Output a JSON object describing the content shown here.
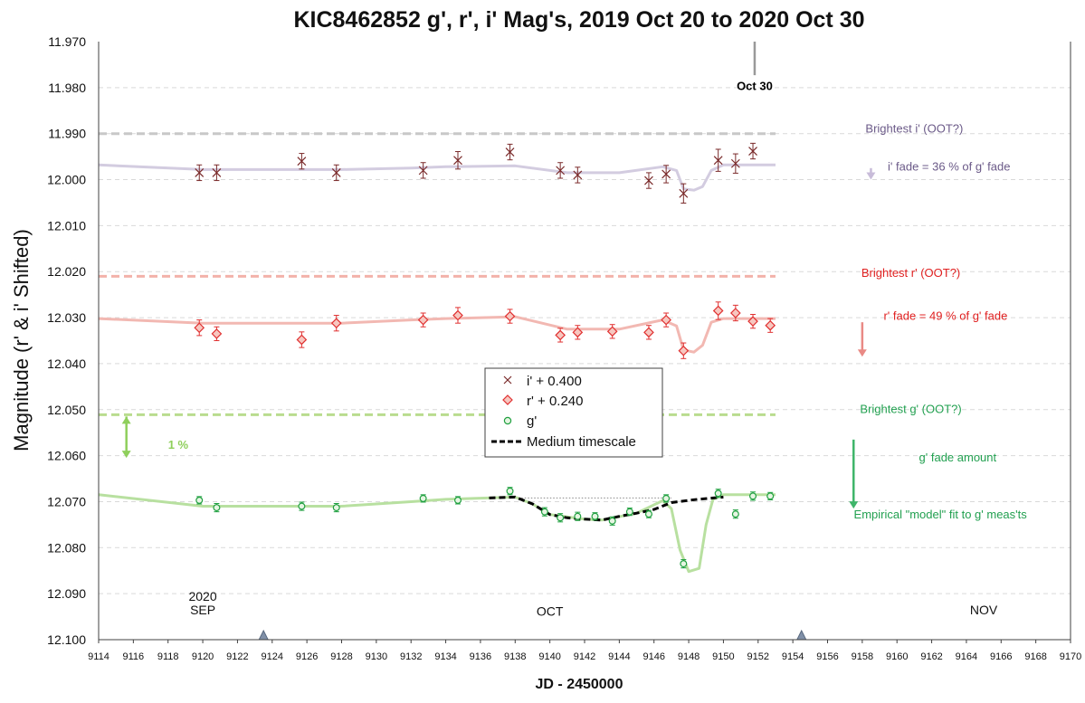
{
  "chart_data": {
    "type": "scatter",
    "title": "KIC8462852 g', r', i' Mag's, 2019 Oct 20 to 2020 Oct 30",
    "xlabel": "JD - 2450000",
    "ylabel": "Magnitude  (r' & i' Shifted)",
    "xlim": [
      9114,
      9170
    ],
    "ylim": [
      11.97,
      12.1
    ],
    "y_inverted": false,
    "x_ticks": [
      9114,
      9116,
      9118,
      9120,
      9122,
      9124,
      9126,
      9128,
      9130,
      9132,
      9134,
      9136,
      9138,
      9140,
      9142,
      9144,
      9146,
      9148,
      9150,
      9152,
      9154,
      9156,
      9158,
      9160,
      9162,
      9164,
      9166,
      9168,
      9170
    ],
    "y_ticks": [
      "11.970",
      "11.980",
      "11.990",
      "12.000",
      "12.010",
      "12.020",
      "12.030",
      "12.040",
      "12.050",
      "12.060",
      "12.070",
      "12.080",
      "12.090",
      "12.100"
    ],
    "grid": true,
    "legend_position": "center",
    "colors": {
      "i": "#7a2a2a",
      "i_line": "#d3cce0",
      "i_ref": "#c8c8c8",
      "r": "#e03030",
      "r_line": "#f2b8b2",
      "r_ref": "#f3b2aa",
      "g": "#20a040",
      "g_line": "#b8e0a0",
      "g_ref": "#b9dc8f",
      "medium": "#000000"
    },
    "series": [
      {
        "name": "i' + 0.400",
        "marker": "x",
        "points": [
          {
            "x": 9119.8,
            "y": 11.9985,
            "e": 0.0017
          },
          {
            "x": 9120.8,
            "y": 11.9985,
            "e": 0.0017
          },
          {
            "x": 9125.7,
            "y": 11.996,
            "e": 0.0017
          },
          {
            "x": 9127.7,
            "y": 11.9985,
            "e": 0.0017
          },
          {
            "x": 9132.7,
            "y": 11.998,
            "e": 0.0017
          },
          {
            "x": 9134.7,
            "y": 11.9958,
            "e": 0.0019
          },
          {
            "x": 9137.7,
            "y": 11.994,
            "e": 0.0017
          },
          {
            "x": 9140.6,
            "y": 11.998,
            "e": 0.0017
          },
          {
            "x": 9141.6,
            "y": 11.999,
            "e": 0.0017
          },
          {
            "x": 9145.7,
            "y": 12.0002,
            "e": 0.0017
          },
          {
            "x": 9146.7,
            "y": 11.9988,
            "e": 0.0019
          },
          {
            "x": 9147.7,
            "y": 12.003,
            "e": 0.0021
          },
          {
            "x": 9149.7,
            "y": 11.9958,
            "e": 0.0024
          },
          {
            "x": 9150.7,
            "y": 11.9965,
            "e": 0.0021
          },
          {
            "x": 9151.7,
            "y": 11.9938,
            "e": 0.0017
          }
        ]
      },
      {
        "name": "r' + 0.240",
        "marker": "diamond",
        "points": [
          {
            "x": 9119.8,
            "y": 12.0322,
            "e": 0.0017
          },
          {
            "x": 9120.8,
            "y": 12.0335,
            "e": 0.0015
          },
          {
            "x": 9125.7,
            "y": 12.0348,
            "e": 0.0017
          },
          {
            "x": 9127.7,
            "y": 12.0312,
            "e": 0.0017
          },
          {
            "x": 9132.7,
            "y": 12.0305,
            "e": 0.0015
          },
          {
            "x": 9134.7,
            "y": 12.0295,
            "e": 0.0017
          },
          {
            "x": 9137.7,
            "y": 12.0297,
            "e": 0.0015
          },
          {
            "x": 9140.6,
            "y": 12.0338,
            "e": 0.0015
          },
          {
            "x": 9141.6,
            "y": 12.0332,
            "e": 0.0015
          },
          {
            "x": 9143.6,
            "y": 12.033,
            "e": 0.0015
          },
          {
            "x": 9145.7,
            "y": 12.0332,
            "e": 0.0015
          },
          {
            "x": 9146.7,
            "y": 12.0305,
            "e": 0.0015
          },
          {
            "x": 9147.7,
            "y": 12.0372,
            "e": 0.0017
          },
          {
            "x": 9149.7,
            "y": 12.0285,
            "e": 0.0019
          },
          {
            "x": 9150.7,
            "y": 12.029,
            "e": 0.0017
          },
          {
            "x": 9151.7,
            "y": 12.0308,
            "e": 0.0015
          },
          {
            "x": 9152.7,
            "y": 12.0317,
            "e": 0.0015
          }
        ]
      },
      {
        "name": "g'",
        "marker": "circle",
        "points": [
          {
            "x": 9119.8,
            "y": 12.0697,
            "e": 0.0008
          },
          {
            "x": 9120.8,
            "y": 12.0713,
            "e": 0.0009
          },
          {
            "x": 9125.7,
            "y": 12.071,
            "e": 0.0009
          },
          {
            "x": 9127.7,
            "y": 12.0713,
            "e": 0.0009
          },
          {
            "x": 9132.7,
            "y": 12.0693,
            "e": 0.0008
          },
          {
            "x": 9134.7,
            "y": 12.0697,
            "e": 0.0008
          },
          {
            "x": 9137.7,
            "y": 12.0677,
            "e": 0.0008
          },
          {
            "x": 9139.7,
            "y": 12.0722,
            "e": 0.0009
          },
          {
            "x": 9140.6,
            "y": 12.0735,
            "e": 0.0009
          },
          {
            "x": 9141.6,
            "y": 12.0732,
            "e": 0.0009
          },
          {
            "x": 9142.6,
            "y": 12.0732,
            "e": 0.0008
          },
          {
            "x": 9143.6,
            "y": 12.0742,
            "e": 0.0009
          },
          {
            "x": 9144.6,
            "y": 12.0722,
            "e": 0.0008
          },
          {
            "x": 9145.7,
            "y": 12.0727,
            "e": 0.0008
          },
          {
            "x": 9146.7,
            "y": 12.0693,
            "e": 0.0008
          },
          {
            "x": 9147.7,
            "y": 12.0835,
            "e": 0.0009
          },
          {
            "x": 9149.7,
            "y": 12.0682,
            "e": 0.0009
          },
          {
            "x": 9150.7,
            "y": 12.0727,
            "e": 0.0009
          },
          {
            "x": 9151.7,
            "y": 12.0688,
            "e": 0.0009
          },
          {
            "x": 9152.7,
            "y": 12.0688,
            "e": 0.0008
          }
        ]
      },
      {
        "name": "Medium timescale",
        "marker": "dashed-line",
        "points": [
          {
            "x": 9136.5,
            "y": 12.0692
          },
          {
            "x": 9138,
            "y": 12.069
          },
          {
            "x": 9139,
            "y": 12.0705
          },
          {
            "x": 9140,
            "y": 12.0728
          },
          {
            "x": 9141,
            "y": 12.0735
          },
          {
            "x": 9142,
            "y": 12.0738
          },
          {
            "x": 9143,
            "y": 12.074
          },
          {
            "x": 9144,
            "y": 12.0732
          },
          {
            "x": 9145,
            "y": 12.0725
          },
          {
            "x": 9146,
            "y": 12.0717
          },
          {
            "x": 9147,
            "y": 12.0702
          },
          {
            "x": 9148.5,
            "y": 12.0695
          },
          {
            "x": 9150,
            "y": 12.069
          }
        ]
      }
    ],
    "model_lines": {
      "i": [
        [
          9114,
          11.9968
        ],
        [
          9120,
          11.9978
        ],
        [
          9128,
          11.9978
        ],
        [
          9132,
          11.9975
        ],
        [
          9134,
          11.9972
        ],
        [
          9138,
          11.997
        ],
        [
          9141,
          11.9985
        ],
        [
          9144,
          11.9985
        ],
        [
          9146.5,
          11.9972
        ],
        [
          9147.3,
          11.998
        ],
        [
          9147.7,
          12.002
        ],
        [
          9148.3,
          12.0023
        ],
        [
          9148.8,
          12.0015
        ],
        [
          9149.3,
          11.998
        ],
        [
          9150,
          11.9968
        ],
        [
          9153,
          11.9968
        ]
      ],
      "r": [
        [
          9114,
          12.0302
        ],
        [
          9120,
          12.0312
        ],
        [
          9128,
          12.0312
        ],
        [
          9132,
          12.0305
        ],
        [
          9134,
          12.0302
        ],
        [
          9138,
          12.0298
        ],
        [
          9141,
          12.0325
        ],
        [
          9144,
          12.0325
        ],
        [
          9146.5,
          12.0305
        ],
        [
          9147.3,
          12.0318
        ],
        [
          9147.7,
          12.037
        ],
        [
          9148.3,
          12.0375
        ],
        [
          9148.8,
          12.036
        ],
        [
          9149.3,
          12.031
        ],
        [
          9150,
          12.0302
        ],
        [
          9153,
          12.0302
        ]
      ],
      "g": [
        [
          9114,
          12.0685
        ],
        [
          9120,
          12.071
        ],
        [
          9128,
          12.071
        ],
        [
          9132,
          12.07
        ],
        [
          9134,
          12.0695
        ],
        [
          9138,
          12.069
        ],
        [
          9139,
          12.0705
        ],
        [
          9140,
          12.0728
        ],
        [
          9142,
          12.0738
        ],
        [
          9143,
          12.074
        ],
        [
          9145,
          12.0725
        ],
        [
          9146.5,
          12.0698
        ],
        [
          9147,
          12.0715
        ],
        [
          9147.5,
          12.0805
        ],
        [
          9148,
          12.0852
        ],
        [
          9148.6,
          12.0845
        ],
        [
          9149,
          12.075
        ],
        [
          9149.4,
          12.0695
        ],
        [
          9150,
          12.0685
        ],
        [
          9153,
          12.0685
        ]
      ]
    },
    "reference_lines": [
      {
        "series": "i",
        "y": 11.99,
        "x0": 9114,
        "x1": 9153
      },
      {
        "series": "r",
        "y": 12.021,
        "x0": 9114,
        "x1": 9153
      },
      {
        "series": "g",
        "y": 12.0511,
        "x0": 9114,
        "x1": 9153
      }
    ],
    "dotted_baseline": {
      "y": 12.0692,
      "x0": 9138,
      "x1": 9147
    },
    "annotations": [
      {
        "id": "oct30",
        "text": "Oct 30",
        "x": 9151.8,
        "y": 11.9805,
        "color": "#000000"
      },
      {
        "id": "bright-i",
        "text": "Brightest i' (OOT?)",
        "x": 9161,
        "y": 11.9898,
        "color": "#6b5a88"
      },
      {
        "id": "fade-i",
        "text": "i' fade = 36 % of g' fade",
        "x": 9163,
        "y": 11.998,
        "color": "#6b5a88"
      },
      {
        "id": "bright-r",
        "text": "Brightest r' (OOT?)",
        "x": 9160.8,
        "y": 12.0211,
        "color": "#e02020"
      },
      {
        "id": "fade-r",
        "text": "r' fade = 49 % of g' fade",
        "x": 9162.8,
        "y": 12.0305,
        "color": "#e02020"
      },
      {
        "id": "bright-g",
        "text": "Brightest g' (OOT?)",
        "x": 9160.8,
        "y": 12.0507,
        "color": "#22a050"
      },
      {
        "id": "fade-g",
        "text": "g' fade amount",
        "x": 9163.5,
        "y": 12.0613,
        "color": "#22a050"
      },
      {
        "id": "model-g",
        "text": "Empirical \"model\" fit to g' meas'ts",
        "x": 9162.5,
        "y": 12.0736,
        "color": "#22a050"
      },
      {
        "id": "one-percent",
        "text": "1 %",
        "x": 9118,
        "y": 12.0585,
        "color": "#8fcf5c"
      },
      {
        "id": "year",
        "text": "2020",
        "x": 9120,
        "y": 12.0915,
        "color": "#000000"
      },
      {
        "id": "sep",
        "text": "SEP",
        "x": 9120,
        "y": 12.0945,
        "color": "#000000"
      },
      {
        "id": "oct",
        "text": "OCT",
        "x": 9140,
        "y": 12.0948,
        "color": "#000000"
      },
      {
        "id": "nov",
        "text": "NOV",
        "x": 9165,
        "y": 12.0945,
        "color": "#000000"
      }
    ],
    "arrows": [
      {
        "series": "i",
        "x": 9158.5,
        "y0": 11.9975,
        "y1": 12.0,
        "color": "#c8bcd9"
      },
      {
        "series": "r",
        "x": 9158,
        "y0": 12.031,
        "y1": 12.0385,
        "color": "#e98a85"
      },
      {
        "series": "g",
        "x": 9157.5,
        "y0": 12.0565,
        "y1": 12.0715,
        "color": "#3fb56a"
      },
      {
        "series": "one-percent",
        "x": 9115.6,
        "y0": 12.0515,
        "y1": 12.0605,
        "color": "#8fcf5c",
        "double": true
      }
    ],
    "month_markers": [
      9123.5,
      9154.5
    ]
  }
}
